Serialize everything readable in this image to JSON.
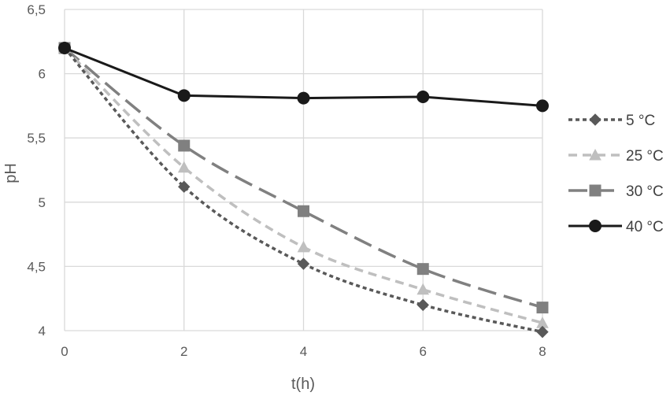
{
  "chart_data": {
    "type": "line",
    "title": "",
    "xlabel": "t(h)",
    "ylabel": "pH",
    "x": [
      0,
      2,
      4,
      6,
      8
    ],
    "x_ticks": [
      "0",
      "2",
      "4",
      "6",
      "8"
    ],
    "xlim": [
      0,
      8
    ],
    "ylim": [
      4,
      6.5
    ],
    "y_ticks": [
      4,
      4.5,
      5,
      5.5,
      6,
      6.5
    ],
    "y_tick_labels": [
      "4",
      "4,5",
      "5",
      "5,5",
      "6",
      "6,5"
    ],
    "grid": true,
    "legend_position": "right",
    "series": [
      {
        "name": "5 °C",
        "values": [
          6.2,
          5.12,
          4.52,
          4.2,
          3.99
        ],
        "color": "#595959",
        "marker": "diamond",
        "line": "dotted"
      },
      {
        "name": "25 °C",
        "values": [
          6.2,
          5.27,
          4.65,
          4.32,
          4.06
        ],
        "color": "#bfbfbf",
        "marker": "triangle",
        "line": "dashed"
      },
      {
        "name": "30 °C",
        "values": [
          6.2,
          5.44,
          4.93,
          4.48,
          4.18
        ],
        "color": "#808080",
        "marker": "square",
        "line": "longdash"
      },
      {
        "name": "40 °C",
        "values": [
          6.2,
          5.83,
          5.81,
          5.82,
          5.75
        ],
        "color": "#1a1a1a",
        "marker": "circle",
        "line": "solid"
      }
    ]
  }
}
